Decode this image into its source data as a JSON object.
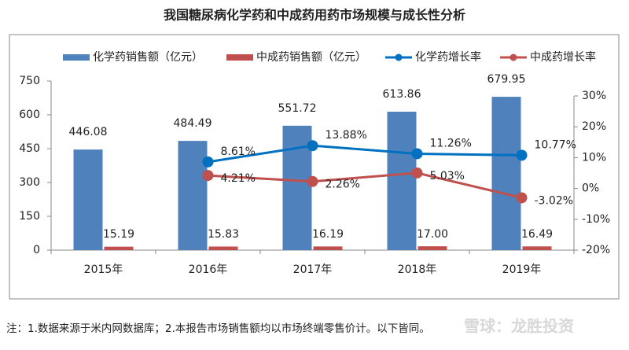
{
  "chart_data": {
    "type": "bar",
    "title": "我国糖尿病化学药和中成药用药市场规模与成长性分析",
    "categories": [
      "2015年",
      "2016年",
      "2017年",
      "2018年",
      "2019年"
    ],
    "series": [
      {
        "name": "化学药销售额（亿元）",
        "type": "bar",
        "color": "#4f81bd",
        "values": [
          446.08,
          484.49,
          551.72,
          613.86,
          679.95
        ],
        "value_labels": [
          "446.08",
          "484.49",
          "551.72",
          "613.86",
          "679.95"
        ]
      },
      {
        "name": "中成药销售额（亿元）",
        "type": "bar",
        "color": "#c0504d",
        "values": [
          15.19,
          15.83,
          16.19,
          17.0,
          16.49
        ],
        "value_labels": [
          "15.19",
          "15.83",
          "16.19",
          "17.00",
          "16.49"
        ]
      },
      {
        "name": "化学药增长率",
        "type": "line",
        "axis": "y2",
        "color": "#0070c0",
        "values": [
          null,
          8.61,
          13.88,
          11.26,
          10.77
        ],
        "value_labels": [
          null,
          "8.61%",
          "13.88%",
          "11.26%",
          "10.77%"
        ]
      },
      {
        "name": "中成药增长率",
        "type": "line",
        "axis": "y2",
        "color": "#c0504d",
        "values": [
          null,
          4.21,
          2.26,
          5.03,
          -3.02
        ],
        "value_labels": [
          null,
          "4.21%",
          "2.26%",
          "5.03%",
          "-3.02%"
        ]
      }
    ],
    "ylim": [
      0,
      750
    ],
    "yticks": [
      0,
      150,
      300,
      450,
      600,
      750
    ],
    "y2lim": [
      -20,
      30
    ],
    "y2ticks": [
      {
        "value": -20,
        "label": "-20%"
      },
      {
        "value": -10,
        "label": "-10%"
      },
      {
        "value": 0,
        "label": "0%"
      },
      {
        "value": 10,
        "label": "10%"
      },
      {
        "value": 20,
        "label": "20%"
      },
      {
        "value": 30,
        "label": "30%"
      }
    ],
    "grid": false,
    "legend": "top",
    "note": "注：1.数据来源于米内网数据库；2.本报告市场销售额均以市场终端零售价计。以下皆同。",
    "watermark": "雪球：龙胜投资"
  }
}
